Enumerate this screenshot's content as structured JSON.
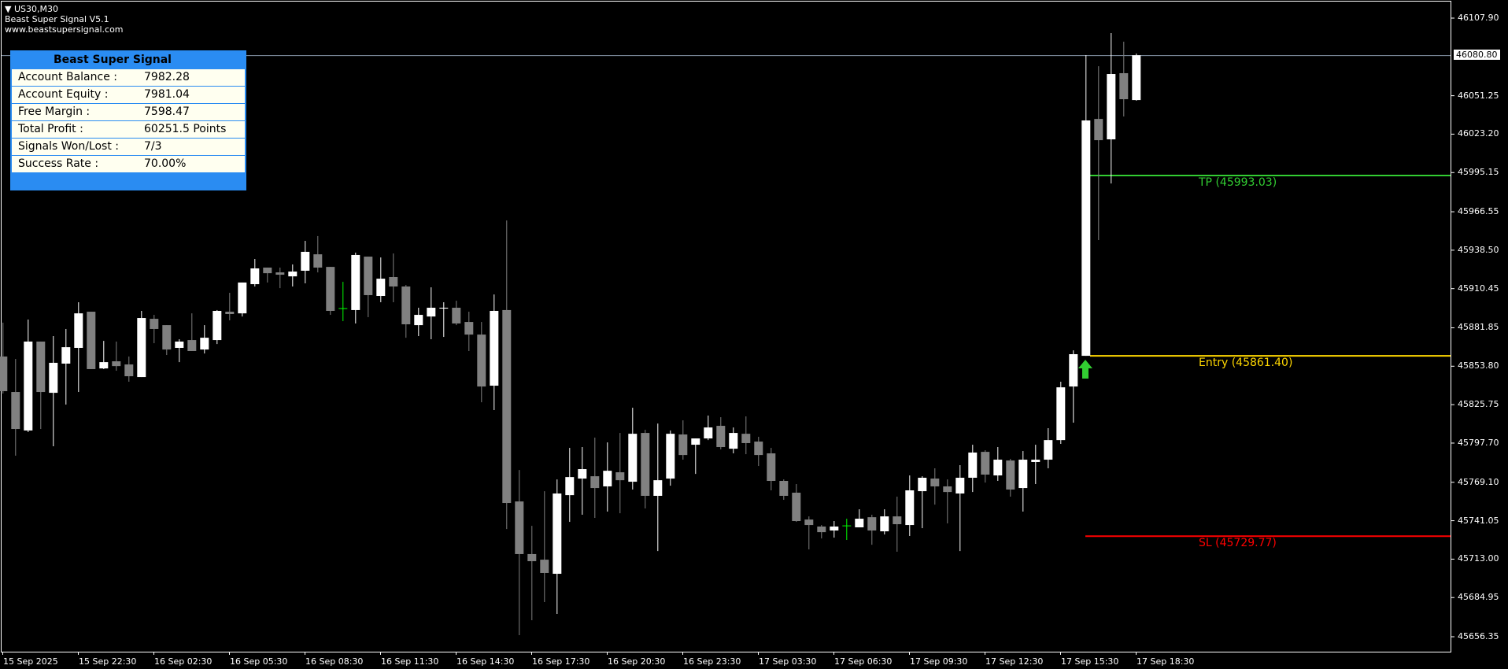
{
  "header": {
    "symbol": "US30,M30",
    "indicator": "Beast Super Signal V5.1",
    "website": "www.beastsupersignal.com"
  },
  "panel": {
    "title": "Beast Super Signal",
    "rows": [
      {
        "label": "Account Balance :",
        "value": "7982.28"
      },
      {
        "label": "Account Equity :",
        "value": "7981.04"
      },
      {
        "label": "Free Margin :",
        "value": "7598.47"
      },
      {
        "label": "Total Profit :",
        "value": "60251.5 Points"
      },
      {
        "label": "Signals Won/Lost :",
        "value": "7/3"
      },
      {
        "label": "Success Rate :",
        "value": "70.00%"
      }
    ],
    "color": "#2a8cf2"
  },
  "levels": {
    "tp": {
      "label": "TP (45993.03)",
      "price": 45993.03,
      "color": "#32cd32"
    },
    "entry": {
      "label": "Entry (45861.40)",
      "price": 45861.4,
      "color": "#ffd700"
    },
    "sl": {
      "label": "SL (45729.77)",
      "price": 45729.77,
      "color": "#ff0000"
    }
  },
  "signal": {
    "type": "buy-arrow",
    "bar": 86,
    "color": "#32cd32"
  },
  "current_price": "46080.80",
  "chart_data": {
    "type": "candlestick",
    "timeframe": "M30",
    "bull_color": "#ffffff",
    "bear_color": "#808080",
    "doji_signal_color": "#00ff00",
    "ylim": [
      45646,
      46118
    ],
    "y_ticks": [
      "46107.90",
      "46051.25",
      "46023.20",
      "45995.15",
      "45966.55",
      "45938.50",
      "45910.45",
      "45881.85",
      "45853.80",
      "45825.75",
      "45797.70",
      "45769.10",
      "45741.05",
      "45713.00",
      "45684.95",
      "45656.35"
    ],
    "x_ticks": [
      "15 Sep 2025",
      "15 Sep 22:30",
      "16 Sep 02:30",
      "16 Sep 05:30",
      "16 Sep 08:30",
      "16 Sep 11:30",
      "16 Sep 14:30",
      "16 Sep 17:30",
      "16 Sep 20:30",
      "16 Sep 23:30",
      "17 Sep 03:30",
      "17 Sep 06:30",
      "17 Sep 09:30",
      "17 Sep 12:30",
      "17 Sep 15:30",
      "17 Sep 18:30"
    ],
    "x_tick_every_bars": 6,
    "ohlc": [
      [
        45860.9,
        45885.6,
        45833.9,
        45835.6
      ],
      [
        45835.0,
        45859.1,
        45788.5,
        45808.0
      ],
      [
        45806.9,
        45887.9,
        45805.7,
        45871.8
      ],
      [
        45871.8,
        45871.8,
        45808.0,
        45835.0
      ],
      [
        45834.4,
        45875.8,
        45795.4,
        45856.3
      ],
      [
        45855.7,
        45881.0,
        45825.8,
        45867.7
      ],
      [
        45867.2,
        45900.5,
        45835.0,
        45892.4
      ],
      [
        45893.6,
        45893.6,
        45851.7,
        45851.7
      ],
      [
        45852.2,
        45872.3,
        45851.7,
        45856.8
      ],
      [
        45857.4,
        45871.8,
        45850.5,
        45853.9
      ],
      [
        45855.1,
        45860.9,
        45842.5,
        45846.5
      ],
      [
        45845.9,
        45894.2,
        45845.9,
        45889.0
      ],
      [
        45888.4,
        45891.3,
        45870.6,
        45881.0
      ],
      [
        45883.8,
        45883.8,
        45862.0,
        45866.0
      ],
      [
        45867.2,
        45873.5,
        45856.8,
        45871.8
      ],
      [
        45872.9,
        45892.4,
        45864.9,
        45864.9
      ],
      [
        45866.0,
        45883.8,
        45863.1,
        45874.6
      ],
      [
        45872.9,
        45894.8,
        45870.0,
        45894.2
      ],
      [
        45893.6,
        45907.4,
        45887.3,
        45891.9
      ],
      [
        45892.4,
        45914.9,
        45890.1,
        45914.9
      ],
      [
        45913.7,
        45932.1,
        45912.0,
        45925.2
      ],
      [
        45925.8,
        45925.8,
        45914.9,
        45921.7
      ],
      [
        45922.3,
        45925.8,
        45910.8,
        45920.6
      ],
      [
        45919.4,
        45928.1,
        45912.0,
        45922.9
      ],
      [
        45923.5,
        45945.3,
        45914.3,
        45937.3
      ],
      [
        45935.5,
        45948.8,
        45922.3,
        45925.8
      ],
      [
        45926.3,
        45926.3,
        45891.3,
        45894.2
      ],
      [
        45895.9,
        45915.4,
        45886.7,
        45895.9
      ],
      [
        45894.8,
        45936.7,
        45885.0,
        45935.0
      ],
      [
        45933.8,
        45933.8,
        45889.6,
        45905.7
      ],
      [
        45905.1,
        45933.2,
        45900.5,
        45917.7
      ],
      [
        45918.9,
        45936.1,
        45900.5,
        45912.0
      ],
      [
        45912.0,
        45913.1,
        45874.6,
        45884.4
      ],
      [
        45883.8,
        45896.5,
        45875.8,
        45891.3
      ],
      [
        45890.1,
        45911.4,
        45873.5,
        45896.5
      ],
      [
        45895.9,
        45900.5,
        45875.2,
        45896.5
      ],
      [
        45896.5,
        45901.6,
        45883.8,
        45885.0
      ],
      [
        45886.1,
        45893.6,
        45864.9,
        45876.9
      ],
      [
        45876.9,
        45886.1,
        45827.5,
        45839.0
      ],
      [
        45839.6,
        45906.2,
        45821.8,
        45894.2
      ],
      [
        45894.8,
        45960.2,
        45735.0,
        45754.0
      ],
      [
        45755.1,
        45778.1,
        45657.5,
        45716.7
      ],
      [
        45716.7,
        45737.3,
        45668.4,
        45711.5
      ],
      [
        45712.6,
        45762.6,
        45681.6,
        45702.9
      ],
      [
        45702.3,
        45771.2,
        45673.0,
        45760.9
      ],
      [
        45759.7,
        45794.2,
        45740.2,
        45772.9
      ],
      [
        45771.8,
        45794.8,
        45745.4,
        45778.7
      ],
      [
        45773.5,
        45801.7,
        45743.1,
        45764.9
      ],
      [
        45766.1,
        45798.2,
        45747.7,
        45777.5
      ],
      [
        45776.4,
        45805.1,
        45746.5,
        45770.6
      ],
      [
        45769.5,
        45823.5,
        45763.8,
        45804.5
      ],
      [
        45805.1,
        45807.4,
        45750.0,
        45759.2
      ],
      [
        45759.2,
        45812.0,
        45718.9,
        45770.6
      ],
      [
        45771.8,
        45806.9,
        45766.6,
        45804.5
      ],
      [
        45804.0,
        45814.3,
        45785.6,
        45789.0
      ],
      [
        45796.5,
        45801.1,
        45775.2,
        45801.1
      ],
      [
        45801.1,
        45817.8,
        45799.9,
        45809.1
      ],
      [
        45810.3,
        45816.6,
        45793.1,
        45794.8
      ],
      [
        45793.6,
        45809.1,
        45790.2,
        45805.1
      ],
      [
        45804.5,
        45817.2,
        45789.6,
        45797.7
      ],
      [
        45798.8,
        45802.3,
        45781.0,
        45789.0
      ],
      [
        45790.2,
        45794.2,
        45763.2,
        45770.1
      ],
      [
        45770.1,
        45771.2,
        45756.3,
        45759.2
      ],
      [
        45761.5,
        45767.8,
        45740.2,
        45740.8
      ],
      [
        45741.9,
        45744.2,
        45720.1,
        45737.9
      ],
      [
        45736.8,
        45737.9,
        45728.1,
        45732.7
      ],
      [
        45733.9,
        45740.8,
        45728.7,
        45736.8
      ],
      [
        45737.3,
        45742.5,
        45727.0,
        45737.3
      ],
      [
        45736.2,
        45749.4,
        45736.2,
        45742.5
      ],
      [
        45743.6,
        45745.4,
        45723.5,
        45733.9
      ],
      [
        45733.3,
        45749.4,
        45731.0,
        45744.2
      ],
      [
        45744.2,
        45758.6,
        45718.4,
        45738.5
      ],
      [
        45737.9,
        45774.1,
        45729.9,
        45763.2
      ],
      [
        45762.6,
        45773.5,
        45735.6,
        45772.4
      ],
      [
        45771.8,
        45779.3,
        45752.8,
        45766.1
      ],
      [
        45766.1,
        45771.2,
        45739.1,
        45762.0
      ],
      [
        45760.9,
        45781.6,
        45718.9,
        45772.4
      ],
      [
        45772.4,
        45796.5,
        45762.0,
        45790.8
      ],
      [
        45791.3,
        45792.5,
        45768.9,
        45774.7
      ],
      [
        45774.1,
        45794.8,
        45770.1,
        45785.6
      ],
      [
        45785.0,
        45786.2,
        45758.6,
        45763.8
      ],
      [
        45764.9,
        45791.9,
        45747.7,
        45785.6
      ],
      [
        45783.9,
        45796.5,
        45767.8,
        45785.6
      ],
      [
        45785.6,
        45808.6,
        45779.3,
        45799.9
      ],
      [
        45799.9,
        45842.5,
        45797.1,
        45838.4
      ],
      [
        45839.0,
        45865.4,
        45812.6,
        45862.6
      ],
      [
        45861.4,
        46080.9,
        45861.4,
        46033.2
      ],
      [
        46034.3,
        46072.8,
        45945.9,
        46018.8
      ],
      [
        46019.4,
        46097.0,
        45987.2,
        46067.1
      ],
      [
        46067.7,
        46090.7,
        46036.1,
        46048.7
      ],
      [
        46048.1,
        46082.0,
        46047.6,
        46080.8
      ]
    ]
  }
}
